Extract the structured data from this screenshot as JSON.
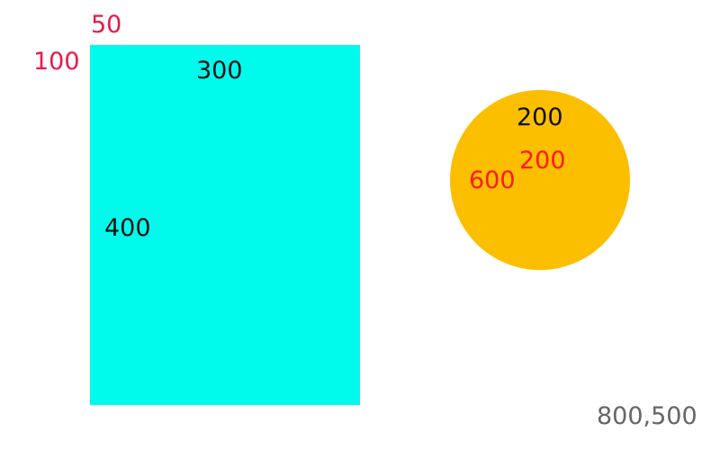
{
  "rectangle": {
    "fill": "#00fbec",
    "top_label": "50",
    "left_label": "100",
    "width_label": "300",
    "height_label": "400"
  },
  "circle": {
    "fill": "#fbbf00",
    "diameter_label": "200",
    "center_y_label": "200",
    "center_x_label": "600"
  },
  "canvas": {
    "size_label": "800,500"
  },
  "colors": {
    "coordinate_label": "#e8194b",
    "circle_coordinate_label": "#ff1a1a",
    "dimension_label": "#111111",
    "canvas_label": "#666666"
  }
}
